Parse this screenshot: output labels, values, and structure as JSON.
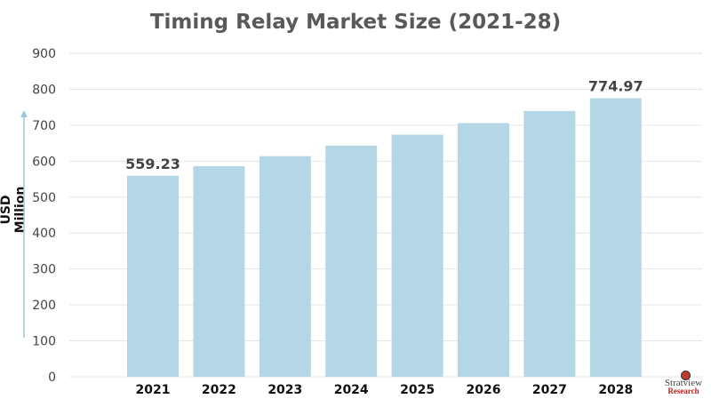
{
  "chart_data": {
    "type": "bar",
    "title": "Timing Relay Market Size (2021-28)",
    "xlabel": "",
    "ylabel": "USD Million",
    "categories": [
      "2021",
      "2022",
      "2023",
      "2024",
      "2025",
      "2026",
      "2027",
      "2028"
    ],
    "values": [
      559.23,
      585.9,
      613.8,
      643.1,
      673.7,
      705.8,
      739.5,
      774.97
    ],
    "data_labels": {
      "2021": "559.23",
      "2028": "774.97"
    },
    "ylim": [
      0,
      900
    ],
    "yticks": [
      0,
      100,
      200,
      300,
      400,
      500,
      600,
      700,
      800,
      900
    ],
    "grid": true,
    "bar_color": "#b5d7e5"
  },
  "logo": {
    "line1": "Stratview",
    "line2": "Research"
  }
}
